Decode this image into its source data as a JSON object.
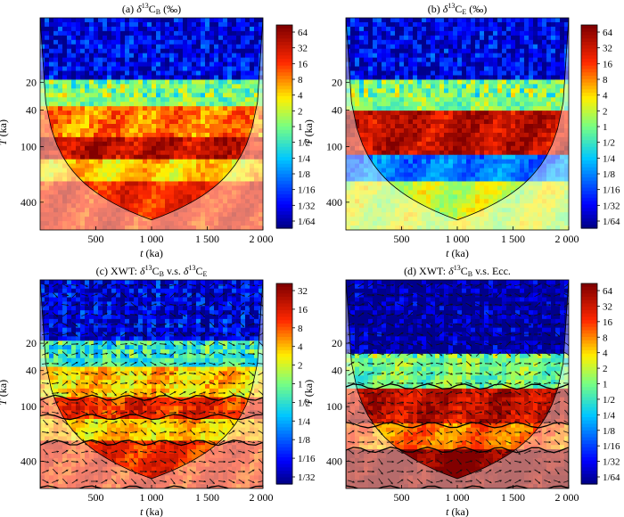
{
  "chart_data": [
    {
      "type": "heatmap",
      "title": "(a) δ13CB (‰)",
      "title_parts": {
        "prefix": "(a) ",
        "delta": "δ",
        "sup": "13",
        "main": "C",
        "sub": "B",
        "suffix": " (‰)"
      },
      "xlabel": "t (ka)",
      "ylabel": "T (ka)",
      "x_ticks": [
        "500",
        "1 000",
        "1 500",
        "2 000"
      ],
      "x_tick_values": [
        500,
        1000,
        1500,
        2000
      ],
      "y_ticks": [
        "20",
        "40",
        "100",
        "400"
      ],
      "y_tick_values": [
        20,
        40,
        100,
        400
      ],
      "xlim": [
        0,
        2000
      ],
      "ylim": [
        4,
        800
      ],
      "y_scale": "log",
      "colorbar_labels": [
        "64",
        "32",
        "16",
        "8",
        "4",
        "2",
        "1",
        "1/2",
        "1/4",
        "1/8",
        "1/16",
        "1/32",
        "1/64"
      ],
      "colorbar_values": [
        64,
        32,
        16,
        8,
        4,
        2,
        1,
        0.5,
        0.25,
        0.125,
        0.0625,
        0.03125,
        0.015625
      ],
      "power_bands": [
        {
          "period_range": [
            4,
            18
          ],
          "log2_power": -5
        },
        {
          "period_range": [
            18,
            35
          ],
          "log2_power": 0
        },
        {
          "period_range": [
            35,
            80
          ],
          "log2_power": 3
        },
        {
          "period_range": [
            80,
            130
          ],
          "log2_power": 5
        },
        {
          "period_range": [
            130,
            250
          ],
          "log2_power": 2
        },
        {
          "period_range": [
            250,
            800
          ],
          "log2_power": 4
        }
      ],
      "cone_of_influence": true,
      "arrows": false,
      "significance_contours": false
    },
    {
      "type": "heatmap",
      "title": "(b) δ13CE (‰)",
      "title_parts": {
        "prefix": "(b) ",
        "delta": "δ",
        "sup": "13",
        "main": "C",
        "sub": "E",
        "suffix": " (‰)"
      },
      "xlabel": "t (ka)",
      "ylabel": "T (ka)",
      "x_ticks": [
        "500",
        "1 000",
        "1 500",
        "2 000"
      ],
      "x_tick_values": [
        500,
        1000,
        1500,
        2000
      ],
      "y_ticks": [
        "20",
        "40",
        "100",
        "400"
      ],
      "y_tick_values": [
        20,
        40,
        100,
        400
      ],
      "xlim": [
        0,
        2000
      ],
      "ylim": [
        4,
        800
      ],
      "y_scale": "log",
      "colorbar_labels": [
        "64",
        "32",
        "16",
        "8",
        "4",
        "2",
        "1",
        "1/2",
        "1/4",
        "1/8",
        "1/16",
        "1/32",
        "1/64"
      ],
      "colorbar_values": [
        64,
        32,
        16,
        8,
        4,
        2,
        1,
        0.5,
        0.25,
        0.125,
        0.0625,
        0.03125,
        0.015625
      ],
      "power_bands": [
        {
          "period_range": [
            4,
            18
          ],
          "log2_power": -5
        },
        {
          "period_range": [
            18,
            40
          ],
          "log2_power": 0
        },
        {
          "period_range": [
            40,
            120
          ],
          "log2_power": 5
        },
        {
          "period_range": [
            120,
            250
          ],
          "log2_power": -3
        },
        {
          "period_range": [
            250,
            800
          ],
          "log2_power": 1
        }
      ],
      "cone_of_influence": true,
      "arrows": false,
      "significance_contours": false
    },
    {
      "type": "heatmap",
      "title": "(c) XWT: δ13CB v.s. δ13CE",
      "title_parts": {
        "prefix": "(c) XWT: ",
        "delta": "δ",
        "sup": "13",
        "main": "C",
        "sub": "B",
        "mid": " v.s. ",
        "delta2": "δ",
        "sup2": "13",
        "main2": "C",
        "sub2": "E",
        "suffix": ""
      },
      "xlabel": "t (ka)",
      "ylabel": "T (ka)",
      "x_ticks": [
        "500",
        "1 000",
        "1 500",
        "2 000"
      ],
      "x_tick_values": [
        500,
        1000,
        1500,
        2000
      ],
      "y_ticks": [
        "20",
        "40",
        "100",
        "400"
      ],
      "y_tick_values": [
        20,
        40,
        100,
        400
      ],
      "xlim": [
        0,
        2000
      ],
      "ylim": [
        4,
        800
      ],
      "y_scale": "log",
      "colorbar_labels": [
        "32",
        "16",
        "8",
        "4",
        "2",
        "1",
        "1/2",
        "1/4",
        "1/8",
        "1/16",
        "1/32"
      ],
      "colorbar_values": [
        32,
        16,
        8,
        4,
        2,
        1,
        0.5,
        0.25,
        0.125,
        0.0625,
        0.03125
      ],
      "power_bands": [
        {
          "period_range": [
            4,
            18
          ],
          "log2_power": -5
        },
        {
          "period_range": [
            18,
            35
          ],
          "log2_power": -1
        },
        {
          "period_range": [
            35,
            80
          ],
          "log2_power": 2
        },
        {
          "period_range": [
            80,
            130
          ],
          "log2_power": 4
        },
        {
          "period_range": [
            130,
            250
          ],
          "log2_power": 2
        },
        {
          "period_range": [
            250,
            800
          ],
          "log2_power": 4
        }
      ],
      "cone_of_influence": true,
      "arrows": true,
      "significance_contours": true
    },
    {
      "type": "heatmap",
      "title": "(d) XWT: δ13CB v.s. Ecc.",
      "title_parts": {
        "prefix": "(d) XWT: ",
        "delta": "δ",
        "sup": "13",
        "main": "C",
        "sub": "B",
        "suffix": " v.s. Ecc."
      },
      "xlabel": "t (ka)",
      "ylabel": "T (ka)",
      "x_ticks": [
        "500",
        "1 000",
        "1 500",
        "2 000"
      ],
      "x_tick_values": [
        500,
        1000,
        1500,
        2000
      ],
      "y_ticks": [
        "20",
        "40",
        "100",
        "400"
      ],
      "y_tick_values": [
        20,
        40,
        100,
        400
      ],
      "xlim": [
        0,
        2000
      ],
      "ylim": [
        4,
        800
      ],
      "y_scale": "log",
      "colorbar_labels": [
        "64",
        "32",
        "16",
        "8",
        "4",
        "2",
        "1",
        "1/2",
        "1/4",
        "1/8",
        "1/16",
        "1/32",
        "1/64"
      ],
      "colorbar_values": [
        64,
        32,
        16,
        8,
        4,
        2,
        1,
        0.5,
        0.25,
        0.125,
        0.0625,
        0.03125,
        0.015625
      ],
      "power_bands": [
        {
          "period_range": [
            4,
            25
          ],
          "log2_power": -6
        },
        {
          "period_range": [
            25,
            60
          ],
          "log2_power": 0
        },
        {
          "period_range": [
            60,
            160
          ],
          "log2_power": 5
        },
        {
          "period_range": [
            160,
            300
          ],
          "log2_power": 3
        },
        {
          "period_range": [
            300,
            800
          ],
          "log2_power": 6
        }
      ],
      "cone_of_influence": true,
      "arrows": true,
      "significance_contours": true
    }
  ]
}
